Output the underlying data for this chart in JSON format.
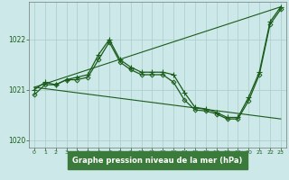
{
  "title": "Graphe pression niveau de la mer (hPa)",
  "background_color": "#cce8e8",
  "label_bg_color": "#3a7a3a",
  "grid_color": "#aacccc",
  "line_color": "#1a5c1a",
  "xlim": [
    -0.5,
    23.5
  ],
  "ylim": [
    1019.85,
    1022.75
  ],
  "yticks": [
    1020,
    1021,
    1022
  ],
  "xticks": [
    0,
    1,
    2,
    3,
    4,
    5,
    6,
    7,
    8,
    9,
    10,
    11,
    12,
    13,
    14,
    15,
    16,
    17,
    18,
    19,
    20,
    21,
    22,
    23
  ],
  "series": [
    {
      "x": [
        0,
        1,
        2,
        3,
        4,
        5,
        6,
        7,
        8,
        9,
        10,
        11,
        12,
        13,
        14,
        15,
        16,
        17,
        18,
        19,
        20,
        21,
        22,
        23
      ],
      "y": [
        1020.9,
        1021.1,
        1021.1,
        1021.2,
        1021.2,
        1021.25,
        1021.6,
        1021.95,
        1021.55,
        1021.4,
        1021.3,
        1021.3,
        1021.3,
        1021.15,
        1020.8,
        1020.6,
        1020.58,
        1020.52,
        1020.42,
        1020.42,
        1020.78,
        1021.3,
        1022.3,
        1022.6
      ],
      "marker": "D",
      "markersize": 2.5,
      "linewidth": 0.9
    },
    {
      "x": [
        0,
        1,
        2,
        3,
        4,
        5,
        6,
        7,
        8,
        9,
        10,
        11,
        12,
        13,
        14,
        15,
        16,
        17,
        18,
        19,
        20,
        21,
        22,
        23
      ],
      "y": [
        1021.0,
        1021.15,
        1021.1,
        1021.2,
        1021.25,
        1021.3,
        1021.7,
        1022.0,
        1021.6,
        1021.45,
        1021.35,
        1021.35,
        1021.35,
        1021.3,
        1020.95,
        1020.65,
        1020.62,
        1020.55,
        1020.45,
        1020.45,
        1020.85,
        1021.35,
        1022.35,
        1022.65
      ],
      "marker": "+",
      "markersize": 4,
      "linewidth": 0.9
    },
    {
      "x": [
        0,
        23
      ],
      "y": [
        1021.05,
        1022.65
      ],
      "marker": null,
      "markersize": 0,
      "linewidth": 0.8
    },
    {
      "x": [
        0,
        23
      ],
      "y": [
        1021.05,
        1020.42
      ],
      "marker": null,
      "markersize": 0,
      "linewidth": 0.8
    }
  ]
}
